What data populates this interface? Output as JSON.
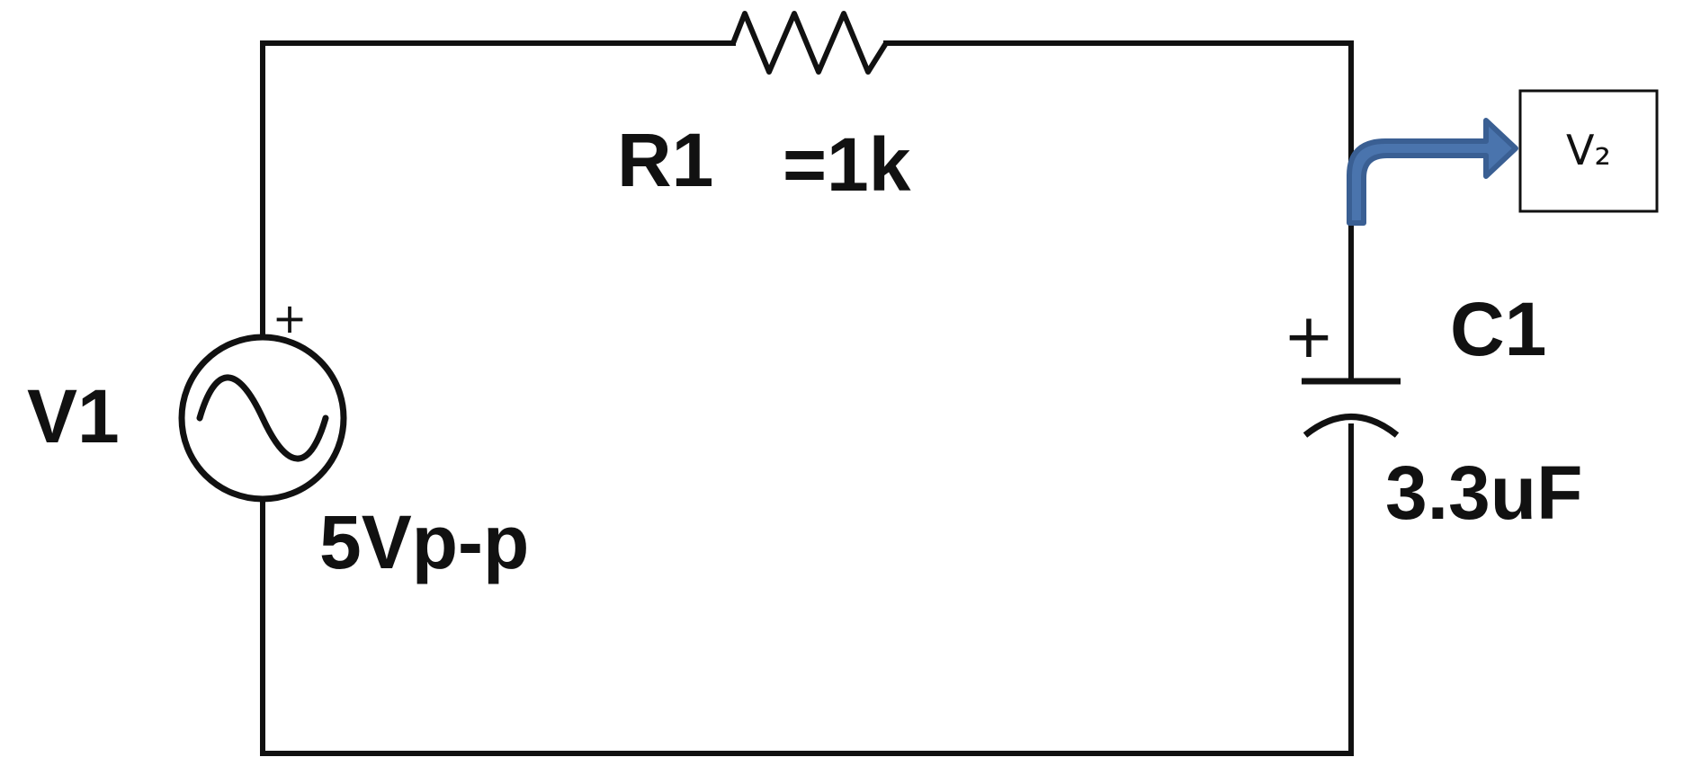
{
  "source": {
    "name": "V1",
    "value": "5Vp-p",
    "polarity": "+"
  },
  "resistor": {
    "name": "R1",
    "value": "=1k"
  },
  "capacitor": {
    "name": "C1",
    "value": "3.3uF",
    "polarity": "+"
  },
  "output": {
    "label": "V₂",
    "arrow_color": "#4a74ad",
    "arrow_outline": "#3a5f93"
  },
  "colors": {
    "wire": "#111111",
    "background": "#ffffff"
  }
}
